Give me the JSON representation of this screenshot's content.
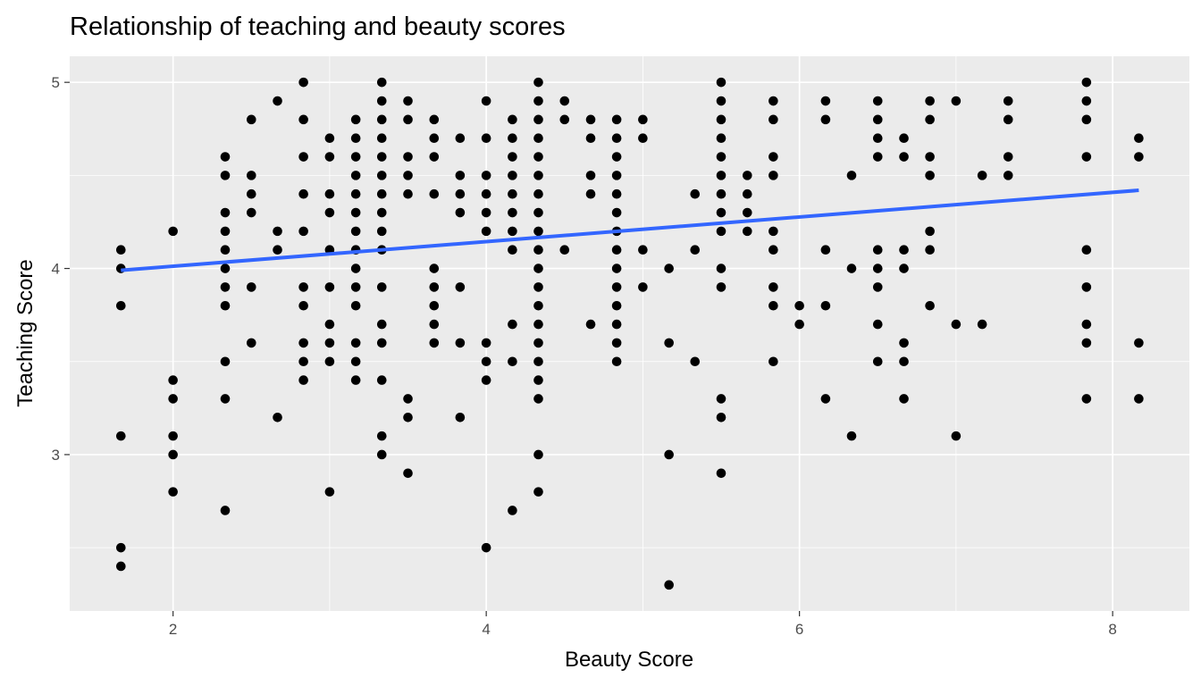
{
  "chart_data": {
    "type": "scatter",
    "title": "Relationship of teaching and beauty scores",
    "xlabel": "Beauty Score",
    "ylabel": "Teaching Score",
    "xlim": [
      1.34,
      8.49
    ],
    "ylim": [
      2.16,
      5.14
    ],
    "x_ticks": [
      2,
      4,
      6,
      8
    ],
    "y_ticks": [
      3,
      4,
      5
    ],
    "x_tick_labels": [
      "2",
      "4",
      "6",
      "8"
    ],
    "y_tick_labels": [
      "3",
      "4",
      "5"
    ],
    "grid": true,
    "fit_line": {
      "color": "#3366ff",
      "x": [
        1.667,
        8.167
      ],
      "y": [
        3.99,
        4.42
      ]
    },
    "point_color": "#000000",
    "points": [
      [
        1.667,
        4.1
      ],
      [
        1.667,
        4.0
      ],
      [
        1.667,
        3.8
      ],
      [
        1.667,
        3.1
      ],
      [
        1.667,
        2.5
      ],
      [
        1.667,
        2.4
      ],
      [
        2.0,
        4.2
      ],
      [
        2.0,
        3.4
      ],
      [
        2.0,
        3.3
      ],
      [
        2.0,
        3.1
      ],
      [
        2.0,
        3.0
      ],
      [
        2.0,
        2.8
      ],
      [
        2.333,
        4.6
      ],
      [
        2.333,
        4.5
      ],
      [
        2.333,
        4.3
      ],
      [
        2.333,
        4.2
      ],
      [
        2.333,
        4.1
      ],
      [
        2.333,
        4.0
      ],
      [
        2.333,
        3.9
      ],
      [
        2.333,
        3.8
      ],
      [
        2.333,
        3.5
      ],
      [
        2.333,
        3.3
      ],
      [
        2.333,
        2.7
      ],
      [
        2.5,
        4.8
      ],
      [
        2.5,
        4.5
      ],
      [
        2.5,
        4.4
      ],
      [
        2.5,
        4.3
      ],
      [
        2.5,
        3.9
      ],
      [
        2.5,
        3.6
      ],
      [
        2.667,
        4.9
      ],
      [
        2.667,
        4.2
      ],
      [
        2.667,
        4.1
      ],
      [
        2.667,
        3.2
      ],
      [
        2.833,
        5.0
      ],
      [
        2.833,
        4.8
      ],
      [
        2.833,
        4.6
      ],
      [
        2.833,
        4.4
      ],
      [
        2.833,
        4.2
      ],
      [
        2.833,
        3.9
      ],
      [
        2.833,
        3.8
      ],
      [
        2.833,
        3.6
      ],
      [
        2.833,
        3.5
      ],
      [
        2.833,
        3.4
      ],
      [
        3.0,
        4.7
      ],
      [
        3.0,
        4.6
      ],
      [
        3.0,
        4.4
      ],
      [
        3.0,
        4.3
      ],
      [
        3.0,
        4.1
      ],
      [
        3.0,
        3.9
      ],
      [
        3.0,
        3.7
      ],
      [
        3.0,
        3.6
      ],
      [
        3.0,
        3.5
      ],
      [
        3.0,
        2.8
      ],
      [
        3.167,
        4.8
      ],
      [
        3.167,
        4.7
      ],
      [
        3.167,
        4.6
      ],
      [
        3.167,
        4.5
      ],
      [
        3.167,
        4.4
      ],
      [
        3.167,
        4.3
      ],
      [
        3.167,
        4.2
      ],
      [
        3.167,
        4.1
      ],
      [
        3.167,
        4.0
      ],
      [
        3.167,
        3.9
      ],
      [
        3.167,
        3.8
      ],
      [
        3.167,
        3.6
      ],
      [
        3.167,
        3.5
      ],
      [
        3.167,
        3.4
      ],
      [
        3.333,
        5.0
      ],
      [
        3.333,
        4.9
      ],
      [
        3.333,
        4.8
      ],
      [
        3.333,
        4.7
      ],
      [
        3.333,
        4.6
      ],
      [
        3.333,
        4.5
      ],
      [
        3.333,
        4.4
      ],
      [
        3.333,
        4.3
      ],
      [
        3.333,
        4.2
      ],
      [
        3.333,
        4.1
      ],
      [
        3.333,
        3.9
      ],
      [
        3.333,
        3.7
      ],
      [
        3.333,
        3.6
      ],
      [
        3.333,
        3.4
      ],
      [
        3.333,
        3.1
      ],
      [
        3.333,
        3.0
      ],
      [
        3.5,
        4.9
      ],
      [
        3.5,
        4.8
      ],
      [
        3.5,
        4.6
      ],
      [
        3.5,
        4.5
      ],
      [
        3.5,
        4.4
      ],
      [
        3.5,
        3.3
      ],
      [
        3.5,
        3.2
      ],
      [
        3.5,
        2.9
      ],
      [
        3.667,
        4.8
      ],
      [
        3.667,
        4.7
      ],
      [
        3.667,
        4.6
      ],
      [
        3.667,
        4.4
      ],
      [
        3.667,
        4.0
      ],
      [
        3.667,
        3.9
      ],
      [
        3.667,
        3.8
      ],
      [
        3.667,
        3.7
      ],
      [
        3.667,
        3.6
      ],
      [
        3.833,
        4.7
      ],
      [
        3.833,
        4.5
      ],
      [
        3.833,
        4.4
      ],
      [
        3.833,
        4.3
      ],
      [
        3.833,
        3.9
      ],
      [
        3.833,
        3.6
      ],
      [
        3.833,
        3.2
      ],
      [
        4.0,
        4.9
      ],
      [
        4.0,
        4.7
      ],
      [
        4.0,
        4.5
      ],
      [
        4.0,
        4.4
      ],
      [
        4.0,
        4.3
      ],
      [
        4.0,
        4.2
      ],
      [
        4.0,
        3.6
      ],
      [
        4.0,
        3.5
      ],
      [
        4.0,
        3.4
      ],
      [
        4.0,
        2.5
      ],
      [
        4.167,
        4.8
      ],
      [
        4.167,
        4.7
      ],
      [
        4.167,
        4.6
      ],
      [
        4.167,
        4.5
      ],
      [
        4.167,
        4.4
      ],
      [
        4.167,
        4.3
      ],
      [
        4.167,
        4.2
      ],
      [
        4.167,
        4.1
      ],
      [
        4.167,
        3.7
      ],
      [
        4.167,
        3.5
      ],
      [
        4.167,
        2.7
      ],
      [
        4.333,
        5.0
      ],
      [
        4.333,
        4.9
      ],
      [
        4.333,
        4.8
      ],
      [
        4.333,
        4.7
      ],
      [
        4.333,
        4.6
      ],
      [
        4.333,
        4.5
      ],
      [
        4.333,
        4.4
      ],
      [
        4.333,
        4.3
      ],
      [
        4.333,
        4.2
      ],
      [
        4.333,
        4.1
      ],
      [
        4.333,
        4.0
      ],
      [
        4.333,
        3.9
      ],
      [
        4.333,
        3.8
      ],
      [
        4.333,
        3.7
      ],
      [
        4.333,
        3.6
      ],
      [
        4.333,
        3.5
      ],
      [
        4.333,
        3.4
      ],
      [
        4.333,
        3.3
      ],
      [
        4.333,
        3.0
      ],
      [
        4.333,
        2.8
      ],
      [
        4.5,
        4.9
      ],
      [
        4.5,
        4.8
      ],
      [
        4.5,
        4.1
      ],
      [
        4.667,
        4.8
      ],
      [
        4.667,
        4.7
      ],
      [
        4.667,
        4.5
      ],
      [
        4.667,
        4.4
      ],
      [
        4.667,
        3.7
      ],
      [
        4.833,
        4.8
      ],
      [
        4.833,
        4.7
      ],
      [
        4.833,
        4.6
      ],
      [
        4.833,
        4.5
      ],
      [
        4.833,
        4.4
      ],
      [
        4.833,
        4.3
      ],
      [
        4.833,
        4.2
      ],
      [
        4.833,
        4.1
      ],
      [
        4.833,
        4.0
      ],
      [
        4.833,
        3.9
      ],
      [
        4.833,
        3.8
      ],
      [
        4.833,
        3.7
      ],
      [
        4.833,
        3.6
      ],
      [
        4.833,
        3.5
      ],
      [
        5.0,
        4.8
      ],
      [
        5.0,
        4.7
      ],
      [
        5.0,
        4.1
      ],
      [
        5.0,
        3.9
      ],
      [
        5.167,
        4.0
      ],
      [
        5.167,
        3.6
      ],
      [
        5.167,
        3.0
      ],
      [
        5.167,
        2.3
      ],
      [
        5.333,
        4.4
      ],
      [
        5.333,
        4.1
      ],
      [
        5.333,
        3.5
      ],
      [
        5.5,
        5.0
      ],
      [
        5.5,
        4.9
      ],
      [
        5.5,
        4.8
      ],
      [
        5.5,
        4.7
      ],
      [
        5.5,
        4.6
      ],
      [
        5.5,
        4.5
      ],
      [
        5.5,
        4.4
      ],
      [
        5.5,
        4.3
      ],
      [
        5.5,
        4.2
      ],
      [
        5.5,
        4.0
      ],
      [
        5.5,
        3.9
      ],
      [
        5.5,
        3.3
      ],
      [
        5.5,
        3.2
      ],
      [
        5.5,
        2.9
      ],
      [
        5.667,
        4.5
      ],
      [
        5.667,
        4.4
      ],
      [
        5.667,
        4.3
      ],
      [
        5.667,
        4.2
      ],
      [
        5.833,
        4.9
      ],
      [
        5.833,
        4.8
      ],
      [
        5.833,
        4.6
      ],
      [
        5.833,
        4.5
      ],
      [
        5.833,
        4.2
      ],
      [
        5.833,
        4.1
      ],
      [
        5.833,
        3.9
      ],
      [
        5.833,
        3.8
      ],
      [
        5.833,
        3.5
      ],
      [
        6.0,
        3.8
      ],
      [
        6.0,
        3.7
      ],
      [
        6.167,
        4.9
      ],
      [
        6.167,
        4.8
      ],
      [
        6.167,
        4.1
      ],
      [
        6.167,
        3.8
      ],
      [
        6.167,
        3.3
      ],
      [
        6.333,
        4.5
      ],
      [
        6.333,
        4.0
      ],
      [
        6.333,
        3.1
      ],
      [
        6.5,
        4.9
      ],
      [
        6.5,
        4.8
      ],
      [
        6.5,
        4.7
      ],
      [
        6.5,
        4.6
      ],
      [
        6.5,
        4.1
      ],
      [
        6.5,
        4.0
      ],
      [
        6.5,
        3.9
      ],
      [
        6.5,
        3.7
      ],
      [
        6.5,
        3.5
      ],
      [
        6.667,
        4.7
      ],
      [
        6.667,
        4.6
      ],
      [
        6.667,
        4.1
      ],
      [
        6.667,
        4.0
      ],
      [
        6.667,
        3.6
      ],
      [
        6.667,
        3.5
      ],
      [
        6.667,
        3.3
      ],
      [
        6.833,
        4.9
      ],
      [
        6.833,
        4.8
      ],
      [
        6.833,
        4.6
      ],
      [
        6.833,
        4.5
      ],
      [
        6.833,
        4.2
      ],
      [
        6.833,
        4.1
      ],
      [
        6.833,
        3.8
      ],
      [
        7.0,
        4.9
      ],
      [
        7.0,
        3.7
      ],
      [
        7.0,
        3.1
      ],
      [
        7.167,
        4.5
      ],
      [
        7.167,
        3.7
      ],
      [
        7.333,
        4.9
      ],
      [
        7.333,
        4.8
      ],
      [
        7.333,
        4.6
      ],
      [
        7.333,
        4.5
      ],
      [
        7.833,
        5.0
      ],
      [
        7.833,
        4.9
      ],
      [
        7.833,
        4.8
      ],
      [
        7.833,
        4.6
      ],
      [
        7.833,
        4.1
      ],
      [
        7.833,
        3.9
      ],
      [
        7.833,
        3.7
      ],
      [
        7.833,
        3.6
      ],
      [
        7.833,
        3.3
      ],
      [
        8.167,
        4.7
      ],
      [
        8.167,
        4.6
      ],
      [
        8.167,
        3.6
      ],
      [
        8.167,
        3.3
      ]
    ]
  }
}
